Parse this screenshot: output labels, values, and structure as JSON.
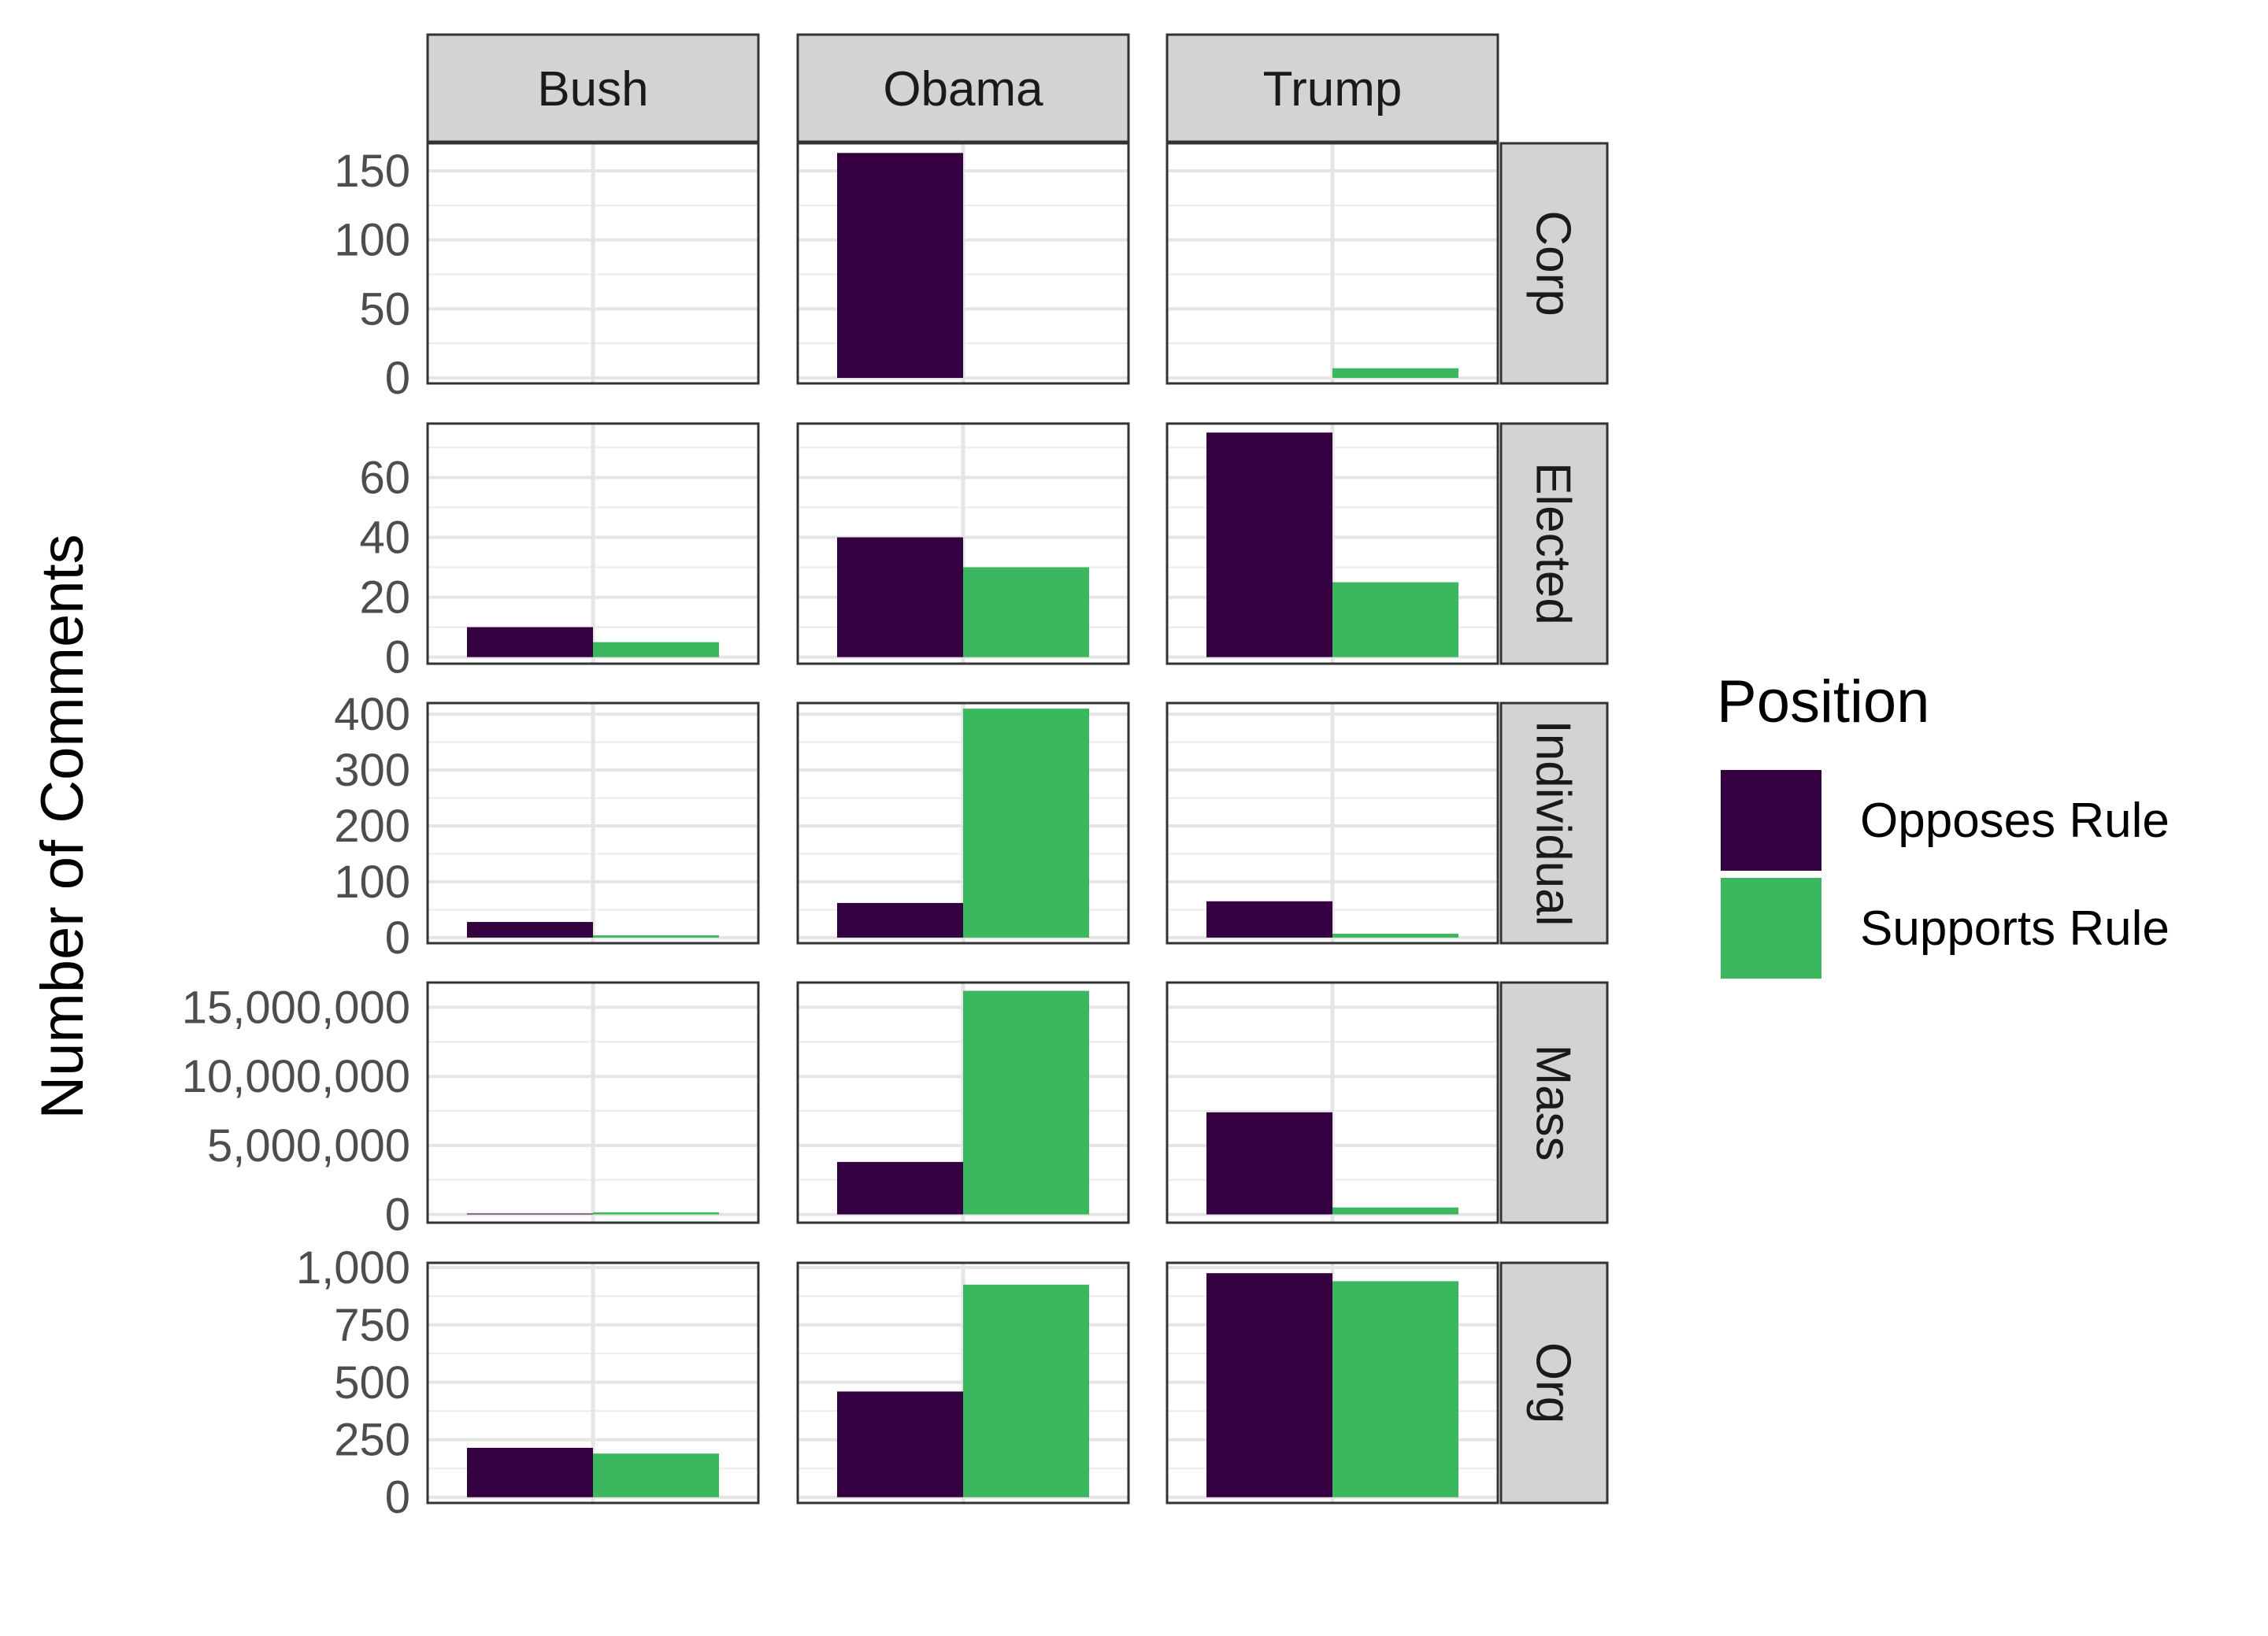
{
  "chart_data": {
    "type": "bar",
    "facet_columns": [
      "Bush",
      "Obama",
      "Trump"
    ],
    "facet_rows": [
      "Corp",
      "Elected",
      "Individual",
      "Mass",
      "Org"
    ],
    "ylabel": "Number of Comments",
    "xlabel": "",
    "scales": "free_y",
    "grid": true,
    "legend": {
      "title": "Position",
      "placement": "right",
      "entries": [
        {
          "name": "Opposes Rule",
          "color": "#35003f"
        },
        {
          "name": "Supports Rule",
          "color": "#3bb75f"
        }
      ]
    },
    "series": [
      {
        "name": "Opposes Rule"
      },
      {
        "name": "Supports Rule"
      }
    ],
    "panels": [
      {
        "row": "Corp",
        "ylim": [
          -4,
          170
        ],
        "ticks": [
          0,
          50,
          100,
          150
        ],
        "tick_labels": [
          "0",
          "50",
          "100",
          "150"
        ],
        "values": {
          "Bush": [
            0,
            0
          ],
          "Obama": [
            163,
            0
          ],
          "Trump": [
            0,
            7
          ]
        }
      },
      {
        "row": "Elected",
        "ylim": [
          -2.2,
          78
        ],
        "ticks": [
          0,
          20,
          40,
          60
        ],
        "tick_labels": [
          "0",
          "20",
          "40",
          "60"
        ],
        "values": {
          "Bush": [
            10,
            5
          ],
          "Obama": [
            40,
            30
          ],
          "Trump": [
            75,
            25
          ]
        }
      },
      {
        "row": "Individual",
        "ylim": [
          -10,
          420
        ],
        "ticks": [
          0,
          100,
          200,
          300,
          400
        ],
        "tick_labels": [
          "0",
          "100",
          "200",
          "300",
          "400"
        ],
        "values": {
          "Bush": [
            28,
            4
          ],
          "Obama": [
            62,
            410
          ],
          "Trump": [
            65,
            7
          ]
        }
      },
      {
        "row": "Mass",
        "ylim": [
          -600000,
          16800000
        ],
        "ticks": [
          0,
          5000000,
          10000000,
          15000000
        ],
        "tick_labels": [
          "0",
          "5,000,000",
          "10,000,000",
          "15,000,000"
        ],
        "values": {
          "Bush": [
            60000,
            150000
          ],
          "Obama": [
            3800000,
            16200000
          ],
          "Trump": [
            7400000,
            500000
          ]
        }
      },
      {
        "row": "Org",
        "ylim": [
          -25,
          1020
        ],
        "ticks": [
          0,
          250,
          500,
          750,
          1000
        ],
        "tick_labels": [
          "0",
          "250",
          "500",
          "750",
          "1,000"
        ],
        "values": {
          "Bush": [
            215,
            190
          ],
          "Obama": [
            460,
            925
          ],
          "Trump": [
            975,
            940
          ]
        }
      }
    ]
  }
}
